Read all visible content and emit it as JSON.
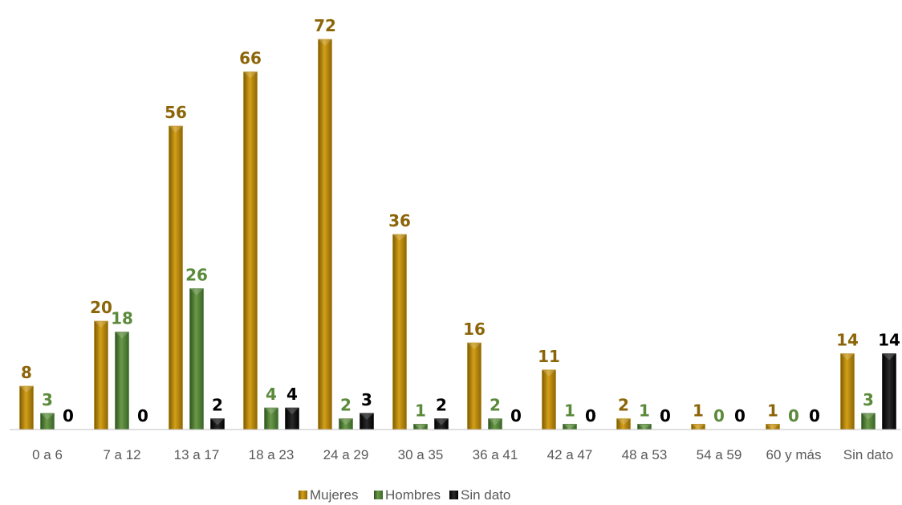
{
  "chart_data": {
    "type": "bar",
    "title": "",
    "xlabel": "",
    "ylabel": "",
    "ylim": [
      0,
      75
    ],
    "grid": false,
    "legend_position": "bottom",
    "categories": [
      "0 a 6",
      "7 a 12",
      "13 a 17",
      "18 a 23",
      "24 a 29",
      "30 a 35",
      "36 a 41",
      "42 a 47",
      "48 a 53",
      "54 a 59",
      "60 y más",
      "Sin dato"
    ],
    "series": [
      {
        "name": "Mujeres",
        "color": "#b8860b",
        "label_color": "#8b6508",
        "values": [
          8,
          20,
          56,
          66,
          72,
          36,
          16,
          11,
          2,
          1,
          1,
          14
        ]
      },
      {
        "name": "Hombres",
        "color": "#4a7a32",
        "label_color": "#5a8a3a",
        "values": [
          3,
          18,
          26,
          4,
          2,
          1,
          2,
          1,
          1,
          0,
          0,
          3
        ]
      },
      {
        "name": "Sin dato",
        "color": "#111111",
        "label_color": "#000000",
        "values": [
          0,
          0,
          2,
          4,
          3,
          2,
          0,
          0,
          0,
          0,
          0,
          14
        ]
      }
    ]
  }
}
